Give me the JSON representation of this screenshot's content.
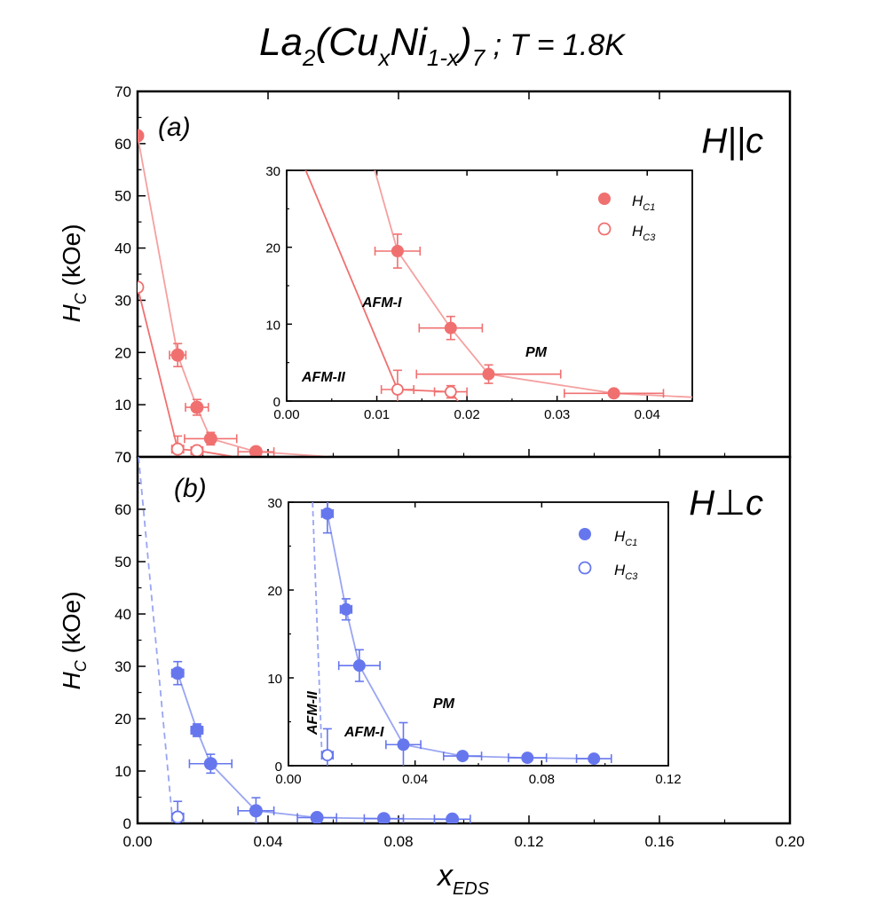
{
  "figure": {
    "title": {
      "main": "La",
      "s1": "2",
      "mid1": "(Cu",
      "s2": "x",
      "mid2": "Ni",
      "s3": "1-x",
      "mid3": ")",
      "s4": "7",
      "tail": " ; T = 1.8K"
    },
    "colors": {
      "red": "#f07070",
      "red_light": "#f5a0a0",
      "blue": "#6677ee",
      "blue_light": "#99a5f2"
    }
  },
  "chart_data": [
    {
      "type": "scatter",
      "panel": "main-a",
      "panel_label": "(a)",
      "field_label": "H||c",
      "ylabel": {
        "base": "H",
        "sub": "C",
        "unit": " (kOe)"
      },
      "xlim": [
        0,
        0.2
      ],
      "ylim": [
        0,
        70
      ],
      "yticks": [
        "0",
        "10",
        "20",
        "30",
        "40",
        "50",
        "60",
        "70"
      ],
      "series": [
        {
          "legend_base": "H",
          "legend_sub": "C1",
          "points": [
            {
              "x": 0.0,
              "y": 61.5
            },
            {
              "x": 0.0123,
              "y": 19.5,
              "xerr": 0.0025,
              "yerr": 2.2
            },
            {
              "x": 0.0182,
              "y": 9.5,
              "xerr": 0.0035,
              "yerr": 1.5
            },
            {
              "x": 0.0224,
              "y": 3.5,
              "xerr": 0.008,
              "yerr": 1.2
            },
            {
              "x": 0.0363,
              "y": 1.0,
              "xerr": 0.0055,
              "yerr": 0.3
            }
          ]
        },
        {
          "legend_base": "H",
          "legend_sub": "C3",
          "points": [
            {
              "x": 0.0,
              "y": 32.5
            },
            {
              "x": 0.0123,
              "y": 1.5,
              "xerr": 0.0018,
              "yerr": 2.5
            },
            {
              "x": 0.0182,
              "y": 1.2,
              "xerr": 0.0018,
              "yerr": 0.8
            }
          ]
        }
      ]
    },
    {
      "type": "scatter",
      "panel": "inset-a",
      "xlim": [
        0,
        0.045
      ],
      "ylim": [
        0,
        30
      ],
      "xticks": [
        "0.00",
        "0.01",
        "0.02",
        "0.03",
        "0.04"
      ],
      "yticks": [
        "0",
        "10",
        "20",
        "30"
      ],
      "region_labels": [
        "AFM-I",
        "AFM-II",
        "PM"
      ]
    },
    {
      "type": "scatter",
      "panel": "main-b",
      "panel_label": "(b)",
      "field_label": "H⊥c",
      "ylabel": {
        "base": "H",
        "sub": "C",
        "unit": " (kOe)"
      },
      "xlabel": {
        "base": "x",
        "sub": "EDS"
      },
      "xlim": [
        0,
        0.2
      ],
      "ylim": [
        0,
        70
      ],
      "xticks": [
        "0.00",
        "0.04",
        "0.08",
        "0.12",
        "0.16",
        "0.20"
      ],
      "yticks": [
        "0",
        "10",
        "20",
        "30",
        "40",
        "50",
        "60",
        "70"
      ],
      "series": [
        {
          "legend_base": "H",
          "legend_sub": "C1",
          "points": [
            {
              "x": 0.0123,
              "y": 28.7,
              "xerr": 0.0018,
              "yerr": 2.2
            },
            {
              "x": 0.0182,
              "y": 17.8,
              "xerr": 0.0018,
              "yerr": 1.2
            },
            {
              "x": 0.0224,
              "y": 11.4,
              "xerr": 0.0065,
              "yerr": 1.8
            },
            {
              "x": 0.0363,
              "y": 2.4,
              "xerr": 0.0055,
              "yerr": 2.5
            },
            {
              "x": 0.055,
              "y": 1.1,
              "xerr": 0.006,
              "yerr": 0.3
            },
            {
              "x": 0.0755,
              "y": 0.9,
              "xerr": 0.006,
              "yerr": 0.3
            },
            {
              "x": 0.0965,
              "y": 0.8,
              "xerr": 0.0055,
              "yerr": 0.3
            }
          ]
        },
        {
          "legend_base": "H",
          "legend_sub": "C3",
          "points": [
            {
              "x": 0.0123,
              "y": 1.2,
              "xerr": 0.0018,
              "yerr": 3.0
            }
          ]
        }
      ]
    },
    {
      "type": "scatter",
      "panel": "inset-b",
      "xlim": [
        0,
        0.12
      ],
      "ylim": [
        0,
        30
      ],
      "xticks": [
        "0.00",
        "0.04",
        "0.08",
        "0.12"
      ],
      "yticks": [
        "0",
        "10",
        "20",
        "30"
      ],
      "region_labels": [
        "AFM-II",
        "AFM-I",
        "PM"
      ]
    }
  ]
}
